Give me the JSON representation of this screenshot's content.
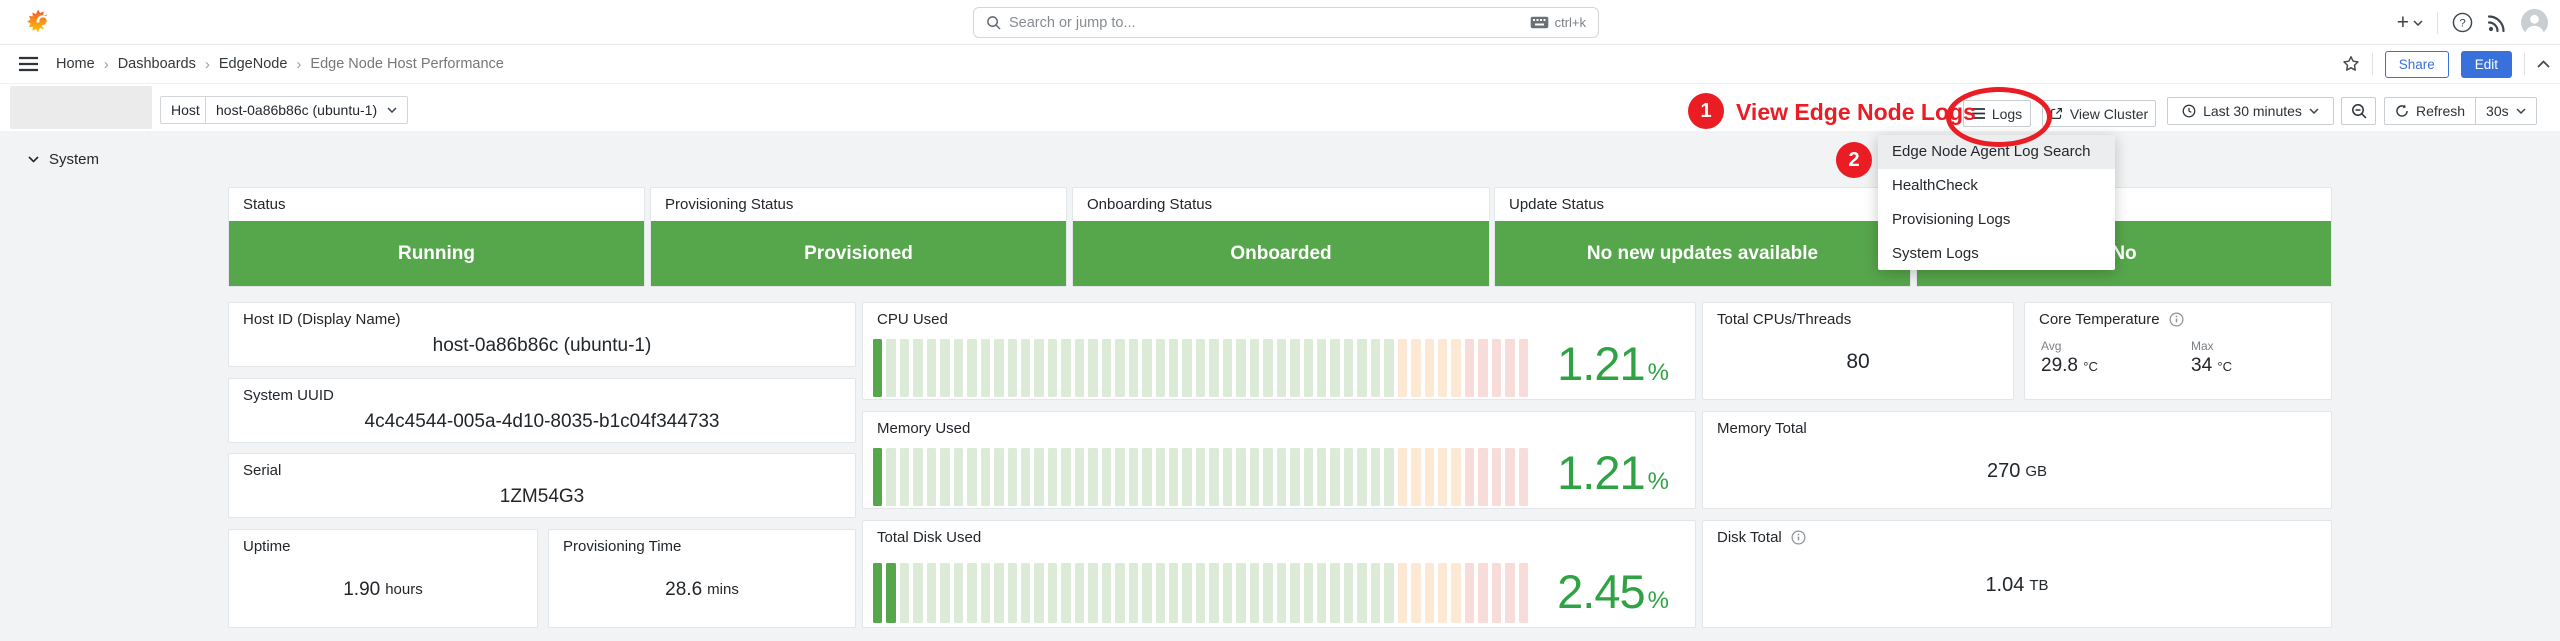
{
  "topnav": {
    "search": {
      "placeholder": "Search or jump to...",
      "shortcut": "ctrl+k"
    }
  },
  "breadcrumb": {
    "items": [
      "Home",
      "Dashboards",
      "EdgeNode",
      "Edge Node Host Performance"
    ]
  },
  "header_actions": {
    "share": "Share",
    "edit": "Edit"
  },
  "toolbar": {
    "host_label": "Host",
    "host_value": "host-0a86b86c (ubuntu-1)",
    "logs_button": "Logs",
    "view_cluster_button": "View Cluster",
    "time_range": "Last 30 minutes",
    "refresh_label": "Refresh",
    "refresh_interval": "30s"
  },
  "annotations": {
    "step1_number": "1",
    "step1_label": "View Edge Node Logs",
    "step2_number": "2",
    "color": "#ea1d25"
  },
  "logs_menu": {
    "items": [
      "Edge Node Agent Log Search",
      "HealthCheck",
      "Provisioning Logs",
      "System Logs"
    ],
    "highlighted_index": 0
  },
  "section": {
    "title": "System"
  },
  "panels": {
    "status": {
      "title": "Status",
      "value": "Running"
    },
    "provisioning_status": {
      "title": "Provisioning Status",
      "value": "Provisioned"
    },
    "onboarding_status": {
      "title": "Onboarding Status",
      "value": "Onboarded"
    },
    "update_status": {
      "title": "Update Status",
      "value": "No new updates available"
    },
    "update_available": {
      "title": "",
      "value": "No"
    },
    "host_id": {
      "title": "Host ID (Display Name)",
      "value": "host-0a86b86c (ubuntu-1)"
    },
    "system_uuid": {
      "title": "System UUID",
      "value": "4c4c4544-005a-4d10-8035-b1c04f344733"
    },
    "serial": {
      "title": "Serial",
      "value": "1ZM54G3"
    },
    "uptime": {
      "title": "Uptime",
      "value": "1.90",
      "unit": "hours"
    },
    "provisioning_time": {
      "title": "Provisioning Time",
      "value": "28.6",
      "unit": "mins"
    },
    "cpu_used": {
      "title": "CPU Used",
      "value": "1.21",
      "unit": "%"
    },
    "memory_used": {
      "title": "Memory Used",
      "value": "1.21",
      "unit": "%"
    },
    "total_disk_used": {
      "title": "Total Disk Used",
      "value": "2.45",
      "unit": "%"
    },
    "total_cpus": {
      "title": "Total CPUs/Threads",
      "value": "80"
    },
    "core_temperature": {
      "title": "Core Temperature",
      "avg_label": "Avg",
      "avg_value": "29.8",
      "avg_unit": "°C",
      "max_label": "Max",
      "max_value": "34",
      "max_unit": "°C"
    },
    "memory_total": {
      "title": "Memory Total",
      "value": "270",
      "unit": "GB"
    },
    "disk_total": {
      "title": "Disk Total",
      "value": "1.04",
      "unit": "TB"
    }
  },
  "chart_data": {
    "type": "bar",
    "subtype": "retro-lcd-bar-gauge",
    "gauges": [
      {
        "name": "cpu_used",
        "title": "CPU Used",
        "value": 1.21,
        "unit": "%",
        "min": 0,
        "max": 100,
        "segments": 49,
        "thresholds": [
          {
            "color": "green",
            "from": 0
          },
          {
            "color": "orange",
            "from": 78
          },
          {
            "color": "red",
            "from": 89
          }
        ]
      },
      {
        "name": "memory_used",
        "title": "Memory Used",
        "value": 1.21,
        "unit": "%",
        "min": 0,
        "max": 100,
        "segments": 49,
        "thresholds": [
          {
            "color": "green",
            "from": 0
          },
          {
            "color": "orange",
            "from": 78
          },
          {
            "color": "red",
            "from": 89
          }
        ]
      },
      {
        "name": "total_disk_used",
        "title": "Total Disk Used",
        "value": 2.45,
        "unit": "%",
        "min": 0,
        "max": 100,
        "segments": 49,
        "thresholds": [
          {
            "color": "green",
            "from": 0
          },
          {
            "color": "orange",
            "from": 78
          },
          {
            "color": "red",
            "from": 89
          }
        ]
      }
    ]
  },
  "colors": {
    "accent_blue": "#3871dc",
    "status_green": "#56a64b",
    "stat_value_green": "#2fa344",
    "annotation_red": "#ea1d25",
    "canvas_bg": "#f2f3f4",
    "gauge_unfilled_green": "#dcebd7",
    "gauge_unfilled_orange": "#fce8d3",
    "gauge_unfilled_red": "#f7dcda"
  }
}
